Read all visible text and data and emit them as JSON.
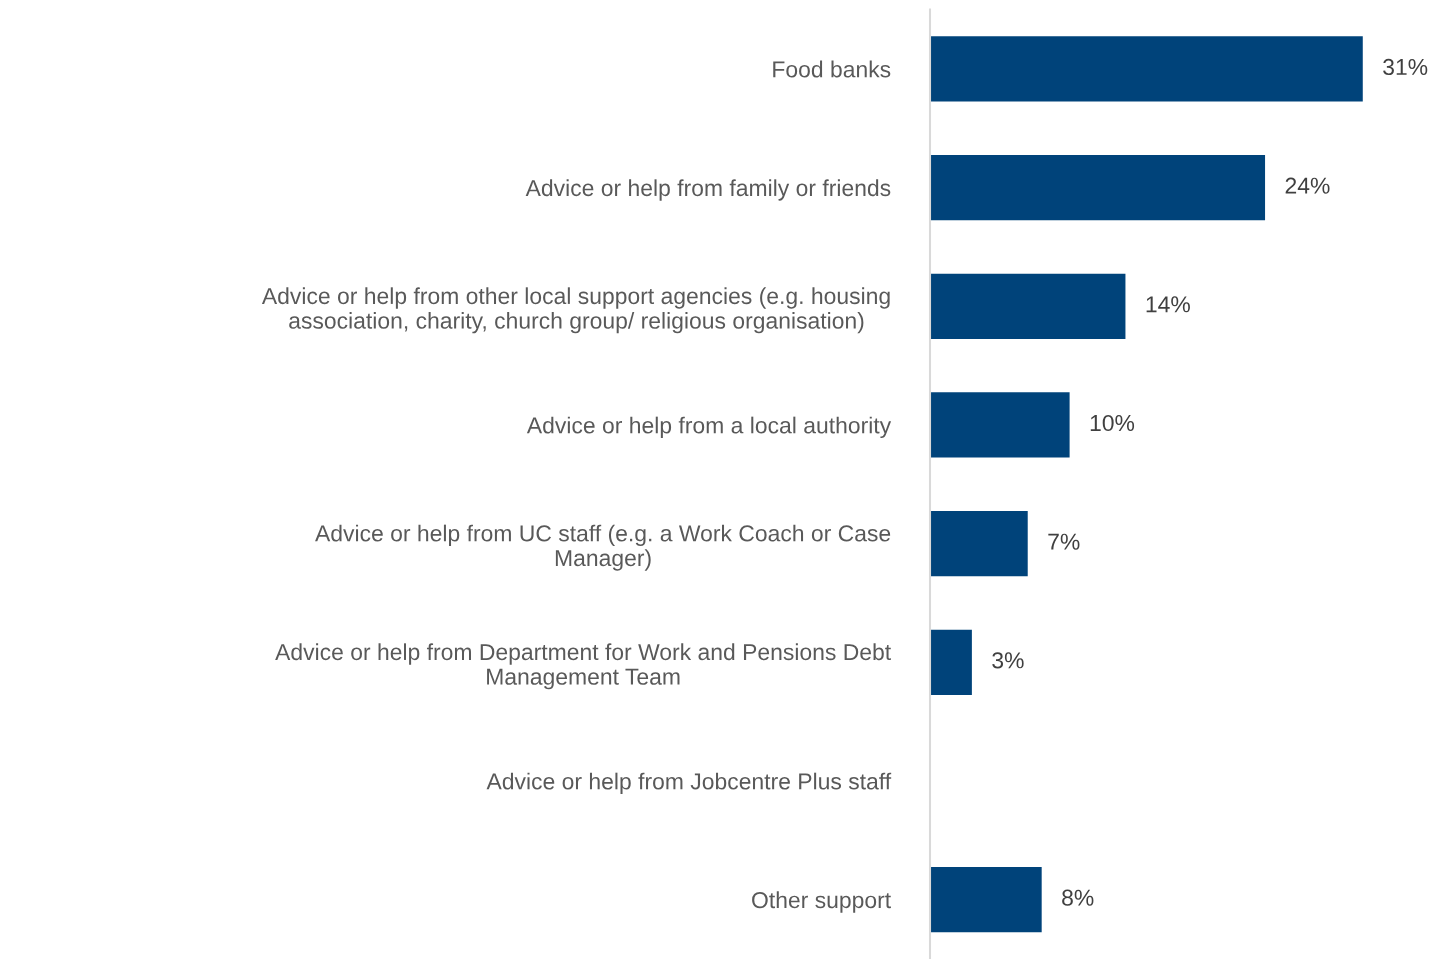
{
  "chart_data": {
    "type": "bar",
    "orientation": "horizontal",
    "categories": [
      "Food banks",
      "Advice or help from family or friends",
      "Advice or help from other local support agencies (e.g. housing\nassociation, charity, church group/ religious organisation)",
      "Advice or help from a local authority",
      "Advice or help from UC staff (e.g. a Work Coach or Case\nManager)",
      "Advice or help from Department for Work and Pensions Debt\nManagement Team",
      "Advice or help from Jobcentre Plus staff",
      "Other support"
    ],
    "values": [
      31,
      24,
      14,
      10,
      7,
      3,
      null,
      8
    ],
    "value_labels": [
      "31%",
      "24%",
      "14%",
      "10%",
      "7%",
      "3%",
      null,
      "8%"
    ],
    "color": "#00437a",
    "grid": false,
    "legend": false
  }
}
